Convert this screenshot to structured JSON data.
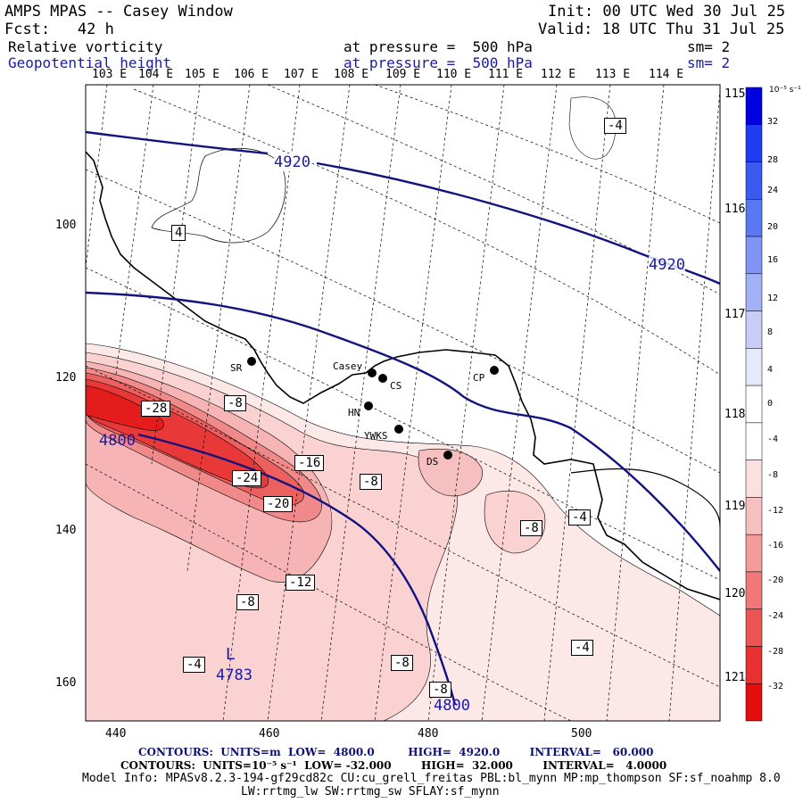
{
  "header": {
    "title": "AMPS MPAS -- Casey Window",
    "init": "Init: 00 UTC Wed 30 Jul 25",
    "fcst": "Fcst:   42 h",
    "valid": "Valid: 18 UTC Thu 31 Jul 25",
    "field1": {
      "name": "Relative vorticity",
      "level": "at pressure =  500 hPa",
      "smooth": "sm= 2"
    },
    "field2": {
      "name": "Geopotential height",
      "level": "at pressure =  500 hPa",
      "smooth": "sm= 2"
    }
  },
  "axes": {
    "top_lon_labels": [
      "103 E",
      "104 E",
      "105 E",
      "106 E",
      "107 E",
      "108 E",
      "109 E",
      "110 E",
      "111 E",
      "112 E",
      "113 E",
      "114 E"
    ],
    "right_lon_labels": [
      "115 E",
      "116 E",
      "117 E",
      "118 E",
      "119 E",
      "120 E",
      "121 E"
    ],
    "y_ticks": [
      "100",
      "120",
      "140",
      "160"
    ],
    "x_ticks": [
      "440",
      "460",
      "480",
      "500"
    ]
  },
  "colorbar": {
    "unit": "10⁻⁵ s⁻¹",
    "ticks": [
      "32",
      "28",
      "24",
      "20",
      "16",
      "12",
      "8",
      "4",
      "0",
      "-4",
      "-8",
      "-12",
      "-16",
      "-20",
      "-24",
      "-28",
      "-32"
    ],
    "colors": [
      "#0000e0",
      "#1f3cf0",
      "#3a5af0",
      "#5a78f2",
      "#7f94f4",
      "#a3b1f6",
      "#c8cdf8",
      "#e6e8fb",
      "#ffffff",
      "#ffffff",
      "#fbe0e0",
      "#f7c0c0",
      "#f49c9c",
      "#f07878",
      "#ec5454",
      "#e83030",
      "#e40e0e"
    ]
  },
  "stations": [
    {
      "code": "SR"
    },
    {
      "code": "Casey"
    },
    {
      "code": "CS"
    },
    {
      "code": "HN"
    },
    {
      "code": "YWKS"
    },
    {
      "code": "CP"
    },
    {
      "code": "DS"
    }
  ],
  "contour_labels": {
    "vorticity": [
      "-4",
      "4",
      "-28",
      "-8",
      "-16",
      "-24",
      "-20",
      "-8",
      "-8",
      "-4",
      "-12",
      "-8",
      "-4",
      "-8",
      "-4",
      "-8"
    ],
    "height": [
      "4920",
      "4920",
      "4800",
      "4800"
    ],
    "low": {
      "symbol": "L",
      "value": "4783"
    }
  },
  "footer": {
    "contours_height": "CONTOURS:  UNITS=m  LOW=  4800.0         HIGH=  4920.0        INTERVAL=   60.000",
    "contours_vort": "CONTOURS:  UNITS=10⁻⁵ s⁻¹  LOW= -32.000        HIGH=  32.000        INTERVAL=   4.0000",
    "model_info": "Model Info: MPASv8.2.3-194-gf29cd82c CU:cu_grell_freitas PBL:bl_mynn MP:mp_thompson SF:sf_noahmp 8.0",
    "model_info2": "LW:rrtmg_lw SW:rrtmg_sw SFLAY:sf_mynn"
  }
}
